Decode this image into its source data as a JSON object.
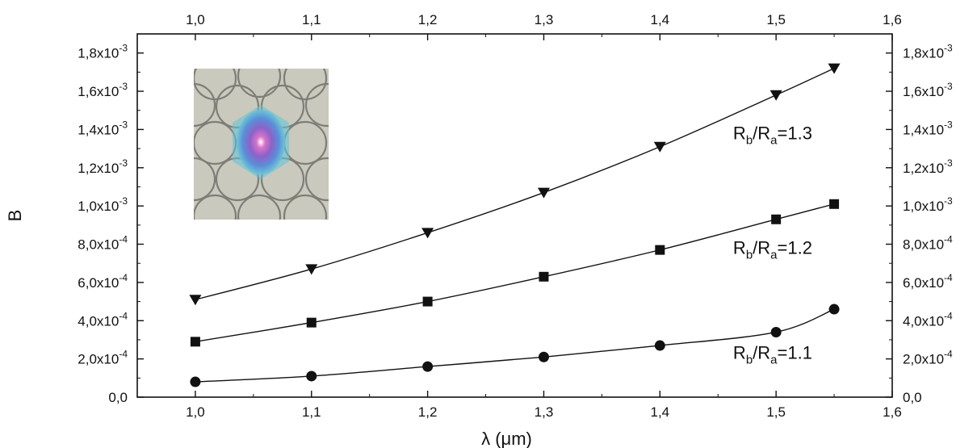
{
  "chart_data": {
    "type": "line",
    "xlabel": "λ (μm)",
    "ylabel": "B",
    "xlim": [
      0.95,
      1.6
    ],
    "ylim": [
      0,
      0.0019
    ],
    "x_ticks": [
      {
        "value": 1.0,
        "label": "1,0"
      },
      {
        "value": 1.1,
        "label": "1,1"
      },
      {
        "value": 1.2,
        "label": "1,2"
      },
      {
        "value": 1.3,
        "label": "1,3"
      },
      {
        "value": 1.4,
        "label": "1,4"
      },
      {
        "value": 1.5,
        "label": "1,5"
      },
      {
        "value": 1.6,
        "label": "1,6"
      }
    ],
    "y_ticks": [
      {
        "value": 0.0,
        "mantissa": "0,0",
        "exp": ""
      },
      {
        "value": 0.0002,
        "mantissa": "2,0x10",
        "exp": "-4"
      },
      {
        "value": 0.0004,
        "mantissa": "4,0x10",
        "exp": "-4"
      },
      {
        "value": 0.0006,
        "mantissa": "6,0x10",
        "exp": "-4"
      },
      {
        "value": 0.0008,
        "mantissa": "8,0x10",
        "exp": "-4"
      },
      {
        "value": 0.001,
        "mantissa": "1,0x10",
        "exp": "-3"
      },
      {
        "value": 0.0012,
        "mantissa": "1,2x10",
        "exp": "-3"
      },
      {
        "value": 0.0014,
        "mantissa": "1,4x10",
        "exp": "-3"
      },
      {
        "value": 0.0016,
        "mantissa": "1,6x10",
        "exp": "-3"
      },
      {
        "value": 0.0018,
        "mantissa": "1,8x10",
        "exp": "-3"
      }
    ],
    "series": [
      {
        "name": "Rb/Ra=1.3",
        "marker": "triangle-down",
        "label_main": "R",
        "label_sub1": "b",
        "label_mid": "/R",
        "label_sub2": "a",
        "label_tail": "=1.3",
        "label_pos": {
          "x": 1.463,
          "y": 0.00135
        },
        "x": [
          1.0,
          1.1,
          1.2,
          1.3,
          1.4,
          1.5,
          1.55
        ],
        "values": [
          0.00051,
          0.00067,
          0.00086,
          0.00107,
          0.00131,
          0.00158,
          0.00172
        ]
      },
      {
        "name": "Rb/Ra=1.2",
        "marker": "square",
        "label_main": "R",
        "label_sub1": "b",
        "label_mid": "/R",
        "label_sub2": "a",
        "label_tail": "=1.2",
        "label_pos": {
          "x": 1.463,
          "y": 0.00075
        },
        "x": [
          1.0,
          1.1,
          1.2,
          1.3,
          1.4,
          1.5,
          1.55
        ],
        "values": [
          0.00029,
          0.00039,
          0.0005,
          0.00063,
          0.00077,
          0.00093,
          0.00101
        ]
      },
      {
        "name": "Rb/Ra=1.1",
        "marker": "circle",
        "label_main": "R",
        "label_sub1": "b",
        "label_mid": "/R",
        "label_sub2": "a",
        "label_tail": "=1.1",
        "label_pos": {
          "x": 1.463,
          "y": 0.0002
        },
        "x": [
          1.0,
          1.1,
          1.2,
          1.3,
          1.4,
          1.5,
          1.55
        ],
        "values": [
          8e-05,
          0.00011,
          0.00016,
          0.00021,
          0.00027,
          0.00034,
          0.00046
        ]
      }
    ],
    "colors": {
      "line": "#111111",
      "marker": "#111111",
      "inset_bg": "#c9c9bd",
      "inset_ring": "#7e7e78",
      "inset_mode_outer": "#5fc3d8",
      "inset_mode_mid": "#6a6ed0",
      "inset_mode_core": "#c24fb0"
    },
    "inset": {
      "description_icon": "fiber-cross-section-mode-image"
    }
  }
}
